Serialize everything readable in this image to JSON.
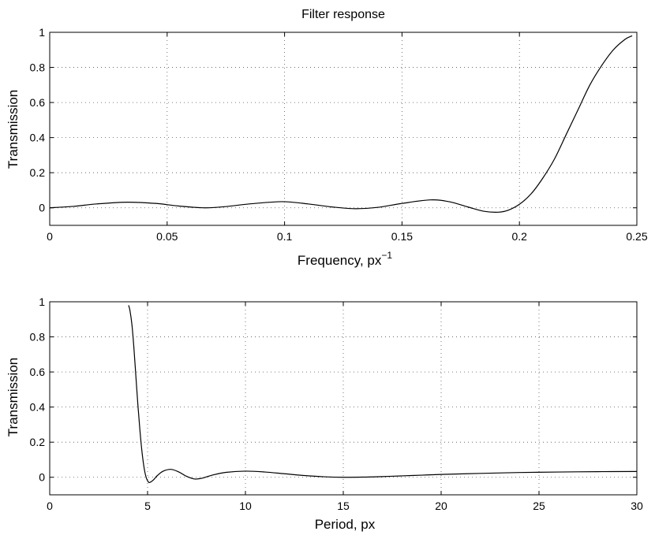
{
  "chart_data": [
    {
      "type": "line",
      "title": "Filter response",
      "xlabel": "Frequency,  px",
      "xlabel_superscript": "−1",
      "ylabel": "Transmission",
      "xlim": [
        0,
        0.25
      ],
      "ylim": [
        -0.1,
        1
      ],
      "xticks": [
        0,
        0.05,
        0.1,
        0.15,
        0.2,
        0.25
      ],
      "xtick_labels": [
        "0",
        "0.05",
        "0.1",
        "0.15",
        "0.2",
        "0.25"
      ],
      "yticks": [
        0,
        0.2,
        0.4,
        0.6,
        0.8,
        1
      ],
      "ytick_labels": [
        "0",
        "0.2",
        "0.4",
        "0.6",
        "0.8",
        "1"
      ],
      "grid": true,
      "series": [
        {
          "x": [
            0,
            0.01,
            0.02,
            0.033,
            0.045,
            0.055,
            0.066,
            0.075,
            0.085,
            0.099,
            0.11,
            0.12,
            0.13,
            0.14,
            0.15,
            0.162,
            0.17,
            0.178,
            0.185,
            0.191,
            0.195,
            0.2,
            0.205,
            0.21,
            0.215,
            0.22,
            0.225,
            0.23,
            0.235,
            0.24,
            0.245,
            0.248
          ],
          "y": [
            0,
            0.008,
            0.022,
            0.032,
            0.025,
            0.01,
            0.0,
            0.007,
            0.022,
            0.035,
            0.022,
            0.005,
            -0.005,
            0.003,
            0.025,
            0.045,
            0.035,
            0.005,
            -0.02,
            -0.025,
            -0.015,
            0.02,
            0.08,
            0.17,
            0.28,
            0.42,
            0.56,
            0.7,
            0.81,
            0.9,
            0.96,
            0.98
          ]
        }
      ]
    },
    {
      "type": "line",
      "title": "",
      "xlabel": "Period,  px",
      "ylabel": "Transmission",
      "xlim": [
        0,
        30
      ],
      "ylim": [
        -0.1,
        1
      ],
      "xticks": [
        0,
        5,
        10,
        15,
        20,
        25,
        30
      ],
      "xtick_labels": [
        "0",
        "5",
        "10",
        "15",
        "20",
        "25",
        "30"
      ],
      "yticks": [
        0,
        0.2,
        0.4,
        0.6,
        0.8,
        1
      ],
      "ytick_labels": [
        "0",
        "0.2",
        "0.4",
        "0.6",
        "0.8",
        "1"
      ],
      "grid": true,
      "series": [
        {
          "x": [
            4.03,
            4.1,
            4.2,
            4.3,
            4.4,
            4.5,
            4.6,
            4.7,
            4.8,
            4.9,
            5.0,
            5.1,
            5.3,
            5.5,
            5.8,
            6.2,
            6.6,
            7.0,
            7.4,
            7.8,
            8.3,
            9.0,
            10.0,
            11.0,
            12.0,
            13.0,
            14.0,
            15.0,
            16.0,
            17.0,
            18.0,
            19.0,
            20.0,
            22.0,
            24.0,
            26.0,
            28.0,
            30.0
          ],
          "y": [
            0.98,
            0.95,
            0.87,
            0.74,
            0.58,
            0.42,
            0.28,
            0.16,
            0.07,
            0.01,
            -0.02,
            -0.03,
            -0.015,
            0.01,
            0.035,
            0.045,
            0.03,
            0.005,
            -0.01,
            -0.005,
            0.012,
            0.028,
            0.035,
            0.03,
            0.02,
            0.01,
            0.003,
            0.0,
            0.001,
            0.004,
            0.008,
            0.012,
            0.016,
            0.022,
            0.027,
            0.03,
            0.032,
            0.033
          ]
        }
      ]
    }
  ]
}
